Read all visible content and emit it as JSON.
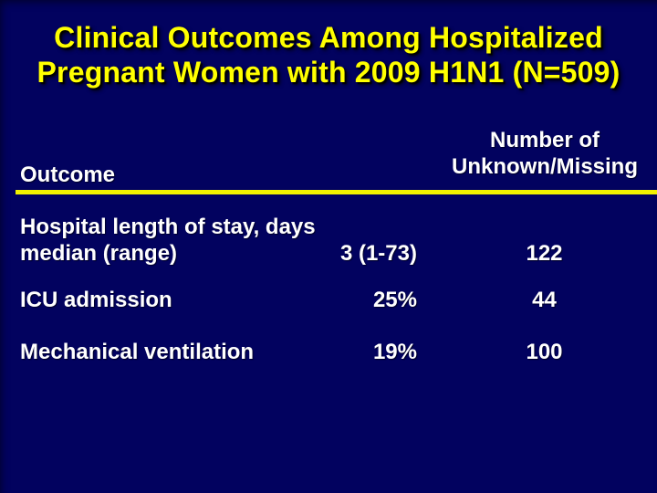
{
  "slide": {
    "title_line1": "Clinical Outcomes Among Hospitalized",
    "title_line2": "Pregnant Women with 2009 H1N1 (N=509)"
  },
  "table": {
    "headers": {
      "outcome": "Outcome",
      "unknown_line1": "Number of",
      "unknown_line2": "Unknown/Missing"
    },
    "rows": [
      {
        "label_line1": "Hospital length of stay, days",
        "label_line2": "median (range)",
        "value": "3 (1-73)",
        "unknown": "122"
      },
      {
        "label_line1": "ICU admission",
        "value": "25%",
        "unknown": "44"
      },
      {
        "label_line1": "Mechanical ventilation",
        "value": "19%",
        "unknown": "100"
      }
    ]
  },
  "colors": {
    "background": "#02025f",
    "title_text": "#ffff00",
    "body_text": "#ffffff",
    "rule": "#f2f200"
  }
}
